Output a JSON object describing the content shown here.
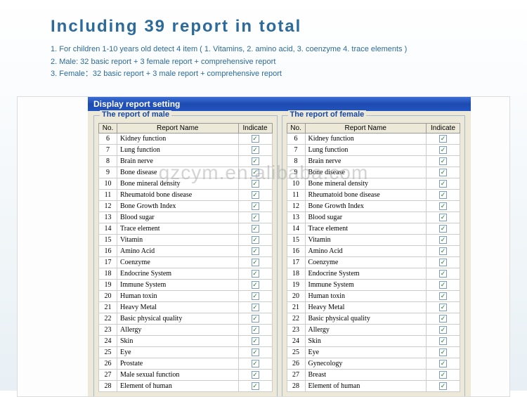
{
  "header": {
    "title": "Including 39 report in total",
    "lines": [
      "1. For children 1-10 years old detect 4 item ( 1. Vitamins, 2. amino acid, 3. coenzyme 4. trace elements )",
      "2. Male: 32 basic report + 3 female report + comprehensive report",
      "3. Female：32 basic report + 3 male report + comprehensive report"
    ]
  },
  "window": {
    "title": "Display report setting"
  },
  "columns": {
    "no": "No.",
    "name": "Report Name",
    "indicate": "Indicate"
  },
  "maleGroup": {
    "legend": "The report of male"
  },
  "femaleGroup": {
    "legend": "The report of female"
  },
  "maleRows": [
    {
      "no": "6",
      "name": "Kidney function",
      "checked": true
    },
    {
      "no": "7",
      "name": "Lung function",
      "checked": true
    },
    {
      "no": "8",
      "name": "Brain nerve",
      "checked": true
    },
    {
      "no": "9",
      "name": "Bone disease",
      "checked": true
    },
    {
      "no": "10",
      "name": "Bone mineral density",
      "checked": true
    },
    {
      "no": "11",
      "name": "Rheumatoid bone disease",
      "checked": true
    },
    {
      "no": "12",
      "name": "Bone Growth Index",
      "checked": true
    },
    {
      "no": "13",
      "name": "Blood sugar",
      "checked": true
    },
    {
      "no": "14",
      "name": "Trace element",
      "checked": true
    },
    {
      "no": "15",
      "name": "Vitamin",
      "checked": true
    },
    {
      "no": "16",
      "name": "Amino Acid",
      "checked": true
    },
    {
      "no": "17",
      "name": "Coenzyme",
      "checked": true
    },
    {
      "no": "18",
      "name": "Endocrine System",
      "checked": true
    },
    {
      "no": "19",
      "name": "Immune System",
      "checked": true
    },
    {
      "no": "20",
      "name": "Human toxin",
      "checked": true
    },
    {
      "no": "21",
      "name": "Heavy Metal",
      "checked": true
    },
    {
      "no": "22",
      "name": "Basic physical quality",
      "checked": true
    },
    {
      "no": "23",
      "name": "Allergy",
      "checked": true
    },
    {
      "no": "24",
      "name": "Skin",
      "checked": true
    },
    {
      "no": "25",
      "name": "Eye",
      "checked": true
    },
    {
      "no": "26",
      "name": "Prostate",
      "checked": true
    },
    {
      "no": "27",
      "name": "Male sexual function",
      "checked": true
    },
    {
      "no": "28",
      "name": "Element of human",
      "checked": true
    }
  ],
  "femaleRows": [
    {
      "no": "6",
      "name": "Kidney function",
      "checked": true
    },
    {
      "no": "7",
      "name": "Lung function",
      "checked": true
    },
    {
      "no": "8",
      "name": "Brain nerve",
      "checked": true
    },
    {
      "no": "9",
      "name": "Bone disease",
      "checked": true
    },
    {
      "no": "10",
      "name": "Bone mineral density",
      "checked": true
    },
    {
      "no": "11",
      "name": "Rheumatoid bone disease",
      "checked": true
    },
    {
      "no": "12",
      "name": "Bone Growth Index",
      "checked": true
    },
    {
      "no": "13",
      "name": "Blood sugar",
      "checked": true
    },
    {
      "no": "14",
      "name": "Trace element",
      "checked": true
    },
    {
      "no": "15",
      "name": "Vitamin",
      "checked": true
    },
    {
      "no": "16",
      "name": "Amino Acid",
      "checked": true
    },
    {
      "no": "17",
      "name": "Coenzyme",
      "checked": true
    },
    {
      "no": "18",
      "name": "Endocrine System",
      "checked": true
    },
    {
      "no": "19",
      "name": "Immune System",
      "checked": true
    },
    {
      "no": "20",
      "name": "Human toxin",
      "checked": true
    },
    {
      "no": "21",
      "name": "Heavy Metal",
      "checked": true
    },
    {
      "no": "22",
      "name": "Basic physical quality",
      "checked": true
    },
    {
      "no": "23",
      "name": "Allergy",
      "checked": true
    },
    {
      "no": "24",
      "name": "Skin",
      "checked": true
    },
    {
      "no": "25",
      "name": "Eye",
      "checked": true
    },
    {
      "no": "26",
      "name": "Gynecology",
      "checked": true
    },
    {
      "no": "27",
      "name": "Breast",
      "checked": true
    },
    {
      "no": "28",
      "name": "Element of human",
      "checked": true
    }
  ],
  "watermark": "gzcym.en.alibaba.com",
  "colors": {
    "titleColor": "#2b6a9a",
    "titlebarGradientTop": "#3a6ed5",
    "titlebarGradientBottom": "#2255c0",
    "groupBorder": "#a9b7cf",
    "legendColor": "#1846a0",
    "panelBg": "#ece9d8"
  }
}
